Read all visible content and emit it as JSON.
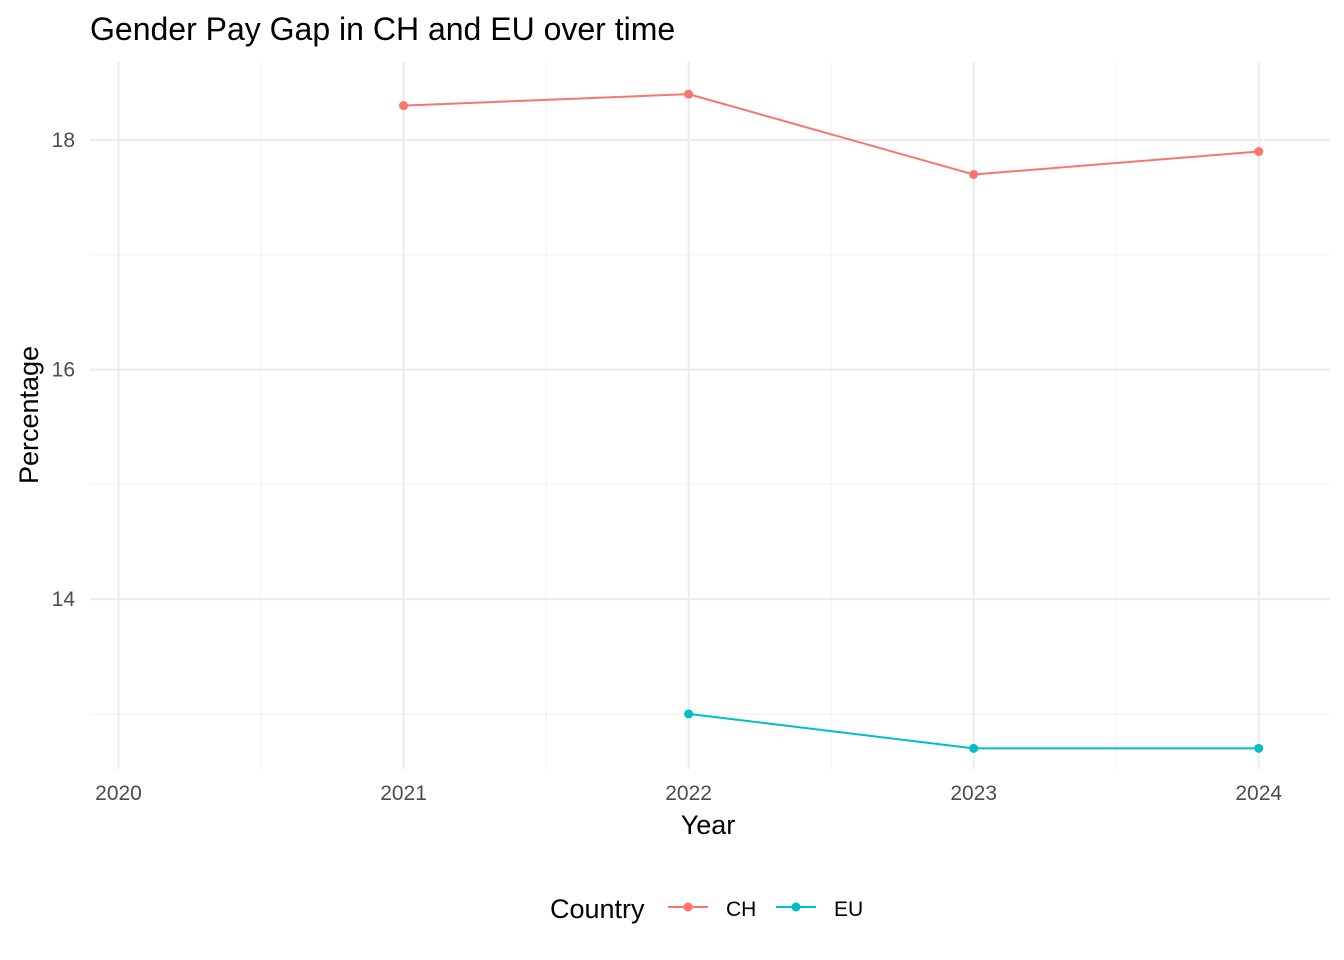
{
  "chart_data": {
    "type": "line",
    "title": "Gender Pay Gap in CH and EU over time",
    "xlabel": "Year",
    "ylabel": "Percentage",
    "x_ticks": [
      "2020",
      "2021",
      "2022",
      "2023",
      "2024"
    ],
    "y_ticks": [
      "14",
      "16",
      "18"
    ],
    "xlim": [
      2019.9,
      2024.25
    ],
    "ylim": [
      12.52,
      18.68
    ],
    "grid": true,
    "legend": {
      "title": "Country",
      "position": "bottom"
    },
    "series": [
      {
        "name": "CH",
        "color": "#F8766D",
        "x": [
          2021,
          2022,
          2023,
          2024
        ],
        "y": [
          18.3,
          18.4,
          17.7,
          17.9
        ]
      },
      {
        "name": "EU",
        "color": "#00BFC4",
        "x": [
          2022,
          2023,
          2024
        ],
        "y": [
          13.0,
          12.7,
          12.7
        ]
      }
    ]
  }
}
